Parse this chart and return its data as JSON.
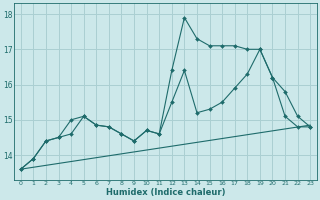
{
  "title": "",
  "xlabel": "Humidex (Indice chaleur)",
  "bg_color": "#cce8ea",
  "grid_color": "#aacfd2",
  "line_color": "#1e6b6b",
  "xlim": [
    -0.5,
    23.5
  ],
  "ylim": [
    13.3,
    18.3
  ],
  "yticks": [
    14,
    15,
    16,
    17,
    18
  ],
  "ytick_labels": [
    "14",
    "15",
    "16",
    "17",
    "18"
  ],
  "xticks": [
    0,
    1,
    2,
    3,
    4,
    5,
    6,
    7,
    8,
    9,
    10,
    11,
    12,
    13,
    14,
    15,
    16,
    17,
    18,
    19,
    20,
    21,
    22,
    23
  ],
  "series": [
    {
      "x": [
        0,
        1,
        2,
        3,
        4,
        5,
        6,
        7,
        8,
        9,
        10,
        11,
        12,
        13,
        14,
        15,
        16,
        17,
        18,
        19,
        20,
        21,
        22,
        23
      ],
      "y": [
        13.6,
        13.9,
        14.4,
        14.5,
        14.6,
        15.1,
        14.85,
        14.8,
        14.6,
        14.4,
        14.7,
        14.6,
        15.5,
        16.4,
        15.2,
        15.3,
        15.5,
        15.9,
        16.3,
        17.0,
        16.2,
        15.8,
        15.1,
        14.8
      ],
      "markers": true
    },
    {
      "x": [
        0,
        1,
        2,
        3,
        4,
        5,
        6,
        7,
        8,
        9,
        10,
        11,
        12,
        13,
        14,
        15,
        16,
        17,
        18,
        19,
        20,
        21,
        22,
        23
      ],
      "y": [
        13.6,
        13.9,
        14.4,
        14.5,
        15.0,
        15.1,
        14.85,
        14.8,
        14.6,
        14.4,
        14.7,
        14.6,
        16.4,
        17.9,
        17.3,
        17.1,
        17.1,
        17.1,
        17.0,
        17.0,
        16.2,
        15.1,
        14.8,
        14.8
      ],
      "markers": true
    },
    {
      "x": [
        0,
        23
      ],
      "y": [
        13.6,
        14.85
      ],
      "markers": false
    }
  ]
}
